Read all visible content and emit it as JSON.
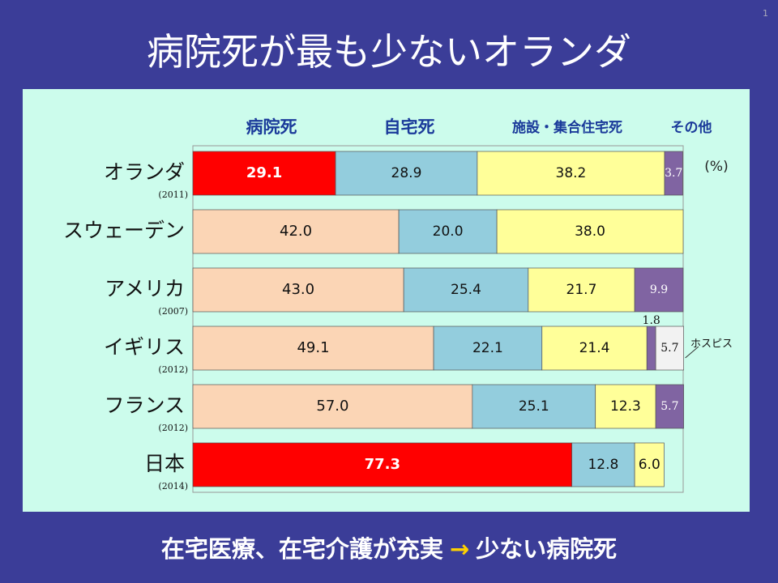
{
  "header": {
    "title": "病院死が最も少ないオランダ",
    "page": "1"
  },
  "footer": {
    "text1": "在宅医療、在宅介護が充実",
    "arrow": "→",
    "text2": "少ない病院死"
  },
  "chart_data": {
    "type": "stacked-bar",
    "orientation": "horizontal",
    "unit_label": "(%)",
    "categories": [
      "オランダ",
      "スウェーデン",
      "アメリカ",
      "イギリス",
      "フランス",
      "日本"
    ],
    "years": [
      "(2011)",
      null,
      "(2007)",
      "(2012)",
      "(2012)",
      "(2014)"
    ],
    "xlim": [
      0,
      100
    ],
    "series": [
      {
        "name": "病院死",
        "colors": [
          "#ff0000",
          "#fbd5b5",
          "#fbd5b5",
          "#fbd5b5",
          "#fbd5b5",
          "#ff0000"
        ],
        "values": [
          29.1,
          42.0,
          43.0,
          49.1,
          57.0,
          77.3
        ],
        "value_labels": [
          "29.1",
          "42.0",
          "43.0",
          "49.1",
          "57.0",
          "77.3"
        ]
      },
      {
        "name": "自宅死",
        "color": "#93cddd",
        "values": [
          28.9,
          20.0,
          25.4,
          22.1,
          25.1,
          12.8
        ],
        "value_labels": [
          "28.9",
          "20.0",
          "25.4",
          "22.1",
          "25.1",
          "12.8"
        ]
      },
      {
        "name": "施設・集合住宅死",
        "color": "#ffff99",
        "values": [
          38.2,
          38.0,
          21.7,
          21.4,
          12.3,
          6.0
        ],
        "value_labels": [
          "38.2",
          "38.0",
          "21.7",
          "21.4",
          "12.3",
          "6.0"
        ]
      },
      {
        "name": "その他",
        "color": "#8064a2",
        "values": [
          3.7,
          null,
          9.9,
          1.8,
          5.7,
          null
        ],
        "value_labels": [
          "3.7",
          null,
          "9.9",
          "1.8",
          "5.7",
          null
        ]
      },
      {
        "name": "ホスピス",
        "color": "#f2f2f2",
        "values": [
          null,
          null,
          null,
          5.7,
          null,
          null
        ],
        "value_labels": [
          null,
          null,
          null,
          "5.7",
          null,
          null
        ]
      }
    ]
  }
}
